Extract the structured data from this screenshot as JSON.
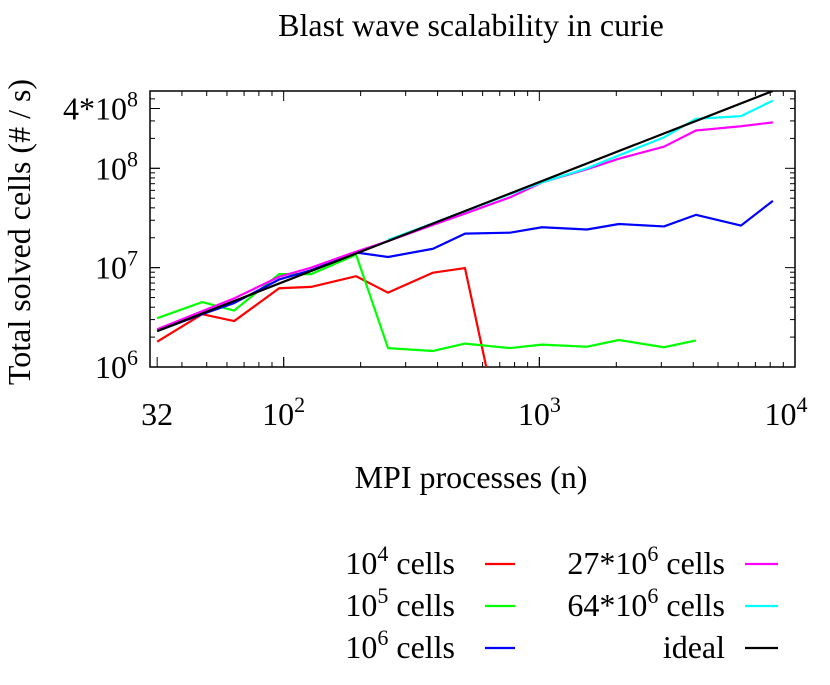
{
  "chart_data": {
    "type": "line",
    "title": "Blast wave scalability in curie",
    "xlabel": "MPI processes (n)",
    "ylabel": "Total solved cells (# / s)",
    "xscale": "log",
    "yscale": "log",
    "xlim": [
      30,
      10000
    ],
    "ylim": [
      1000000,
      600000000
    ],
    "legend_position": "bottom",
    "x_ticks": [
      {
        "value": 32,
        "base": "32",
        "exp": ""
      },
      {
        "value": 100,
        "base": "10",
        "exp": "2"
      },
      {
        "value": 1000,
        "base": "10",
        "exp": "3"
      },
      {
        "value": 10000,
        "base": "10",
        "exp": "4"
      }
    ],
    "y_ticks": [
      {
        "value": 1000000,
        "base": "10",
        "exp": "6"
      },
      {
        "value": 10000000,
        "base": "10",
        "exp": "7"
      },
      {
        "value": 100000000,
        "base": "10",
        "exp": "8"
      },
      {
        "value": 400000000,
        "base": "4*10",
        "exp": "8"
      }
    ],
    "series": [
      {
        "name": "10^4 cells",
        "legend_base": "10",
        "legend_exp": "4",
        "legend_suffix": " cells",
        "color": "#ff0000",
        "x": [
          32,
          48,
          64,
          96,
          128,
          192,
          256,
          384,
          512,
          620
        ],
        "y": [
          1800000,
          3400000,
          2900000,
          6200000,
          6400000,
          8200000,
          5600000,
          8900000,
          9900000,
          1000000
        ]
      },
      {
        "name": "10^5 cells",
        "legend_base": "10",
        "legend_exp": "5",
        "legend_suffix": " cells",
        "color": "#00ff00",
        "x": [
          32,
          48,
          64,
          96,
          128,
          192,
          256,
          384,
          512,
          768,
          1024,
          1536,
          2048,
          3072,
          4096
        ],
        "y": [
          3100000,
          4500000,
          3700000,
          8600000,
          8600000,
          13500000,
          1550000,
          1450000,
          1720000,
          1550000,
          1680000,
          1600000,
          1870000,
          1580000,
          1850000
        ]
      },
      {
        "name": "10^6 cells",
        "legend_base": "10",
        "legend_exp": "6",
        "legend_suffix": " cells",
        "color": "#0000ff",
        "x": [
          32,
          48,
          64,
          96,
          128,
          192,
          256,
          384,
          512,
          768,
          1024,
          1536,
          2048,
          3072,
          4096,
          6144,
          8192
        ],
        "y": [
          2300000,
          3400000,
          4400000,
          7600000,
          9400000,
          14200000,
          12800000,
          15500000,
          22000000,
          22500000,
          25500000,
          24200000,
          27500000,
          26000000,
          34000000,
          26500000,
          47000000
        ]
      },
      {
        "name": "27*10^6 cells",
        "legend_base": "27*10",
        "legend_exp": "6",
        "legend_suffix": " cells",
        "color": "#ff00ff",
        "x": [
          32,
          64,
          96,
          128,
          192,
          256,
          384,
          512,
          768,
          1024,
          1536,
          2048,
          3072,
          4096,
          6144,
          8192
        ],
        "y": [
          2400000,
          4900000,
          8100000,
          10000000,
          14500000,
          18500000,
          27000000,
          35000000,
          51000000,
          72000000,
          98000000,
          125000000,
          165000000,
          240000000,
          265000000,
          290000000
        ]
      },
      {
        "name": "64*10^6 cells",
        "legend_base": "64*10",
        "legend_exp": "6",
        "legend_suffix": " cells",
        "color": "#00ffff",
        "x": [
          256,
          384,
          512,
          768,
          1024,
          1536,
          2048,
          3072,
          4096,
          6144,
          8192
        ],
        "y": [
          19000000,
          28000000,
          37000000,
          55000000,
          72000000,
          100000000,
          135000000,
          205000000,
          315000000,
          335000000,
          480000000
        ]
      },
      {
        "name": "ideal",
        "legend_base": "ideal",
        "legend_exp": "",
        "legend_suffix": "",
        "color": "#000000",
        "x": [
          32,
          8192
        ],
        "y": [
          2300000,
          600000000
        ]
      }
    ]
  }
}
